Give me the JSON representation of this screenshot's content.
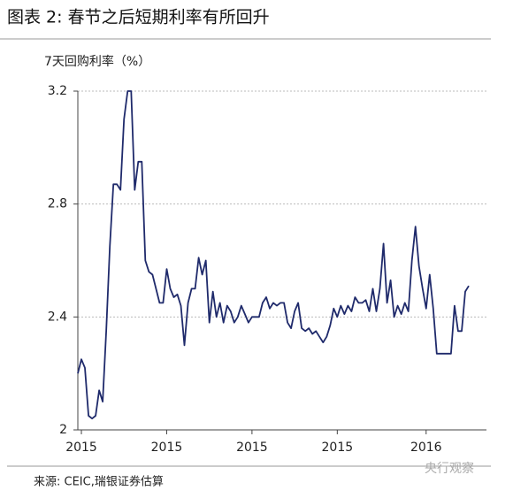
{
  "chart_data": {
    "type": "line",
    "title": "图表 2: 春节之后短期利率有所回升",
    "y_label": "7天回购利率（%）",
    "source": "来源: CEIC,瑞银证券估算",
    "watermark": "央行观察",
    "x": [
      0,
      1,
      2,
      3,
      4,
      5,
      6,
      7,
      8,
      9,
      10,
      11,
      12,
      13,
      14,
      15,
      16,
      17,
      18,
      19,
      20,
      21,
      22,
      23,
      24,
      25,
      26,
      27,
      28,
      29,
      30,
      31,
      32,
      33,
      34,
      35,
      36,
      37,
      38,
      39,
      40,
      41,
      42,
      43,
      44,
      45,
      46,
      47,
      48,
      49,
      50,
      51,
      52,
      53,
      54,
      55,
      56,
      57,
      58,
      59,
      60,
      61,
      62,
      63,
      64,
      65,
      66,
      67,
      68,
      69,
      70,
      71,
      72,
      73,
      74,
      75,
      76,
      77,
      78,
      79,
      80,
      81,
      82,
      83,
      84,
      85,
      86,
      87,
      88,
      89,
      90,
      91,
      92,
      93,
      94,
      95,
      96,
      97,
      98,
      99,
      100,
      101,
      102,
      103,
      104,
      105,
      106,
      107,
      108,
      109,
      110
    ],
    "series": [
      {
        "name": "7天回购利率",
        "color": "#1f2a6b",
        "values": [
          2.2,
          2.25,
          2.22,
          2.05,
          2.04,
          2.05,
          2.14,
          2.1,
          2.35,
          2.65,
          2.87,
          2.87,
          2.85,
          3.1,
          3.2,
          3.2,
          2.85,
          2.95,
          2.95,
          2.6,
          2.56,
          2.55,
          2.5,
          2.45,
          2.45,
          2.57,
          2.5,
          2.47,
          2.48,
          2.44,
          2.3,
          2.45,
          2.5,
          2.5,
          2.61,
          2.55,
          2.6,
          2.38,
          2.49,
          2.4,
          2.45,
          2.38,
          2.44,
          2.42,
          2.38,
          2.4,
          2.44,
          2.41,
          2.38,
          2.4,
          2.4,
          2.4,
          2.45,
          2.47,
          2.43,
          2.45,
          2.44,
          2.45,
          2.45,
          2.38,
          2.36,
          2.42,
          2.45,
          2.36,
          2.35,
          2.36,
          2.34,
          2.35,
          2.33,
          2.31,
          2.33,
          2.37,
          2.43,
          2.4,
          2.44,
          2.41,
          2.44,
          2.42,
          2.47,
          2.45,
          2.45,
          2.46,
          2.42,
          2.5,
          2.42,
          2.5,
          2.66,
          2.45,
          2.53,
          2.4,
          2.44,
          2.41,
          2.45,
          2.42,
          2.6,
          2.72,
          2.58,
          2.5,
          2.43,
          2.55,
          2.43,
          2.27,
          2.27,
          2.27,
          2.27,
          2.27,
          2.44,
          2.35,
          2.35,
          2.49,
          2.51
        ]
      }
    ],
    "xlim": [
      0,
      110
    ],
    "xticks": [
      {
        "value": 1,
        "label": "2015"
      },
      {
        "value": 25,
        "label": "2015"
      },
      {
        "value": 49,
        "label": "2015"
      },
      {
        "value": 73,
        "label": "2015"
      },
      {
        "value": 98,
        "label": "2016"
      }
    ],
    "ylim": [
      2,
      3.2
    ],
    "yticks": [
      2,
      2.4,
      2.8,
      3.2
    ],
    "grid": true
  }
}
